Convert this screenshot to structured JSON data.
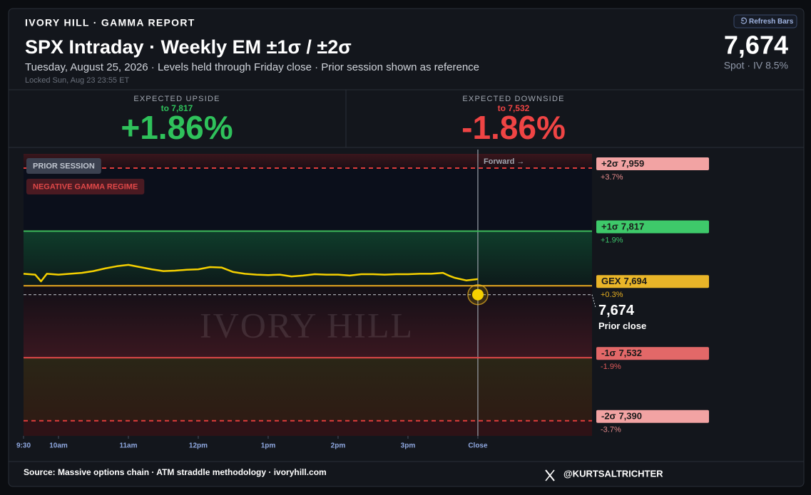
{
  "header": {
    "brand": "IVORY HILL · GAMMA REPORT",
    "title": "SPX Intraday · Weekly EM ±1σ / ±2σ",
    "subtitle": "Tuesday, August 25, 2026 · Levels held through Friday close · Prior session shown as reference",
    "locked": "Locked Sun, Aug 23 23:55 ET",
    "refresh": "Refresh Bars",
    "spot": "7,674",
    "spot_note": "Spot · IV 8.5%"
  },
  "cards": [
    {
      "label": "EXPECTED UPSIDE",
      "target": "to 7,817",
      "change": "+1.86%",
      "color": "#2fc25b"
    },
    {
      "label": "EXPECTED DOWNSIDE",
      "target": "to 7,532",
      "change": "-1.86%",
      "color": "#ef4444"
    }
  ],
  "chart_data": {
    "type": "line",
    "badges": [
      "PRIOR SESSION",
      "NEGATIVE GAMMA REGIME"
    ],
    "forward_label": "Forward →",
    "watermark": "IVORY HILL",
    "x": [
      0,
      10,
      15,
      20,
      30,
      40,
      50,
      60,
      70,
      80,
      90,
      100,
      110,
      120,
      130,
      140,
      150,
      160,
      170,
      180,
      190,
      200,
      210,
      220,
      230,
      240,
      250,
      260,
      270,
      280,
      290,
      300,
      310,
      320,
      330,
      340,
      350,
      360,
      365,
      370,
      380,
      390
    ],
    "values": [
      7721,
      7719,
      7704,
      7721,
      7719,
      7721,
      7723,
      7727,
      7733,
      7738,
      7741,
      7736,
      7731,
      7727,
      7728,
      7730,
      7731,
      7736,
      7735,
      7725,
      7721,
      7719,
      7718,
      7719,
      7715,
      7717,
      7720,
      7719,
      7719,
      7717,
      7720,
      7720,
      7719,
      7720,
      7720,
      7721,
      7721,
      7723,
      7717,
      7712,
      7706,
      7709
    ],
    "color": "#f5d000",
    "xlim": [
      0,
      488
    ],
    "xticks": [
      {
        "value": 0,
        "label": "9:30"
      },
      {
        "value": 30,
        "label": "10am"
      },
      {
        "value": 90,
        "label": "11am"
      },
      {
        "value": 150,
        "label": "12pm"
      },
      {
        "value": 210,
        "label": "1pm"
      },
      {
        "value": 270,
        "label": "2pm"
      },
      {
        "value": 330,
        "label": "3pm"
      },
      {
        "value": 390,
        "label": "Close"
      }
    ],
    "ylim": [
      7356,
      7991
    ],
    "levels": [
      {
        "name": "+2σ",
        "value": 7959,
        "value_label": "7,959",
        "change": "+3.7%",
        "color": "#e03c3c",
        "label_color": "#f2a3a3",
        "text_color": "#e58a8a",
        "style": "dashed"
      },
      {
        "name": "+1σ",
        "value": 7817,
        "value_label": "7,817",
        "change": "+1.9%",
        "color": "#3cb95a",
        "label_color": "#3ec96a",
        "text_color": "#3cc46a",
        "style": "solid"
      },
      {
        "name": "GEX",
        "value": 7694,
        "value_label": "7,694",
        "change": "+0.3%",
        "color": "#e8a820",
        "label_color": "#e9b528",
        "text_color": "#e8b020",
        "style": "solid"
      },
      {
        "name": "-1σ",
        "value": 7532,
        "value_label": "7,532",
        "change": "-1.9%",
        "color": "#e04848",
        "label_color": "#e26868",
        "text_color": "#e05a5a",
        "style": "solid"
      },
      {
        "name": "-2σ",
        "value": 7390,
        "value_label": "7,390",
        "change": "-3.7%",
        "color": "#e03c3c",
        "label_color": "#f2a3a3",
        "text_color": "#e58a8a",
        "style": "dashed"
      }
    ],
    "prior_close": {
      "value": 7674,
      "value_label": "7,674",
      "name": "Prior close",
      "color": "#c8ccd4"
    }
  },
  "footer": {
    "source": "Source: Massive options chain · ATM straddle methodology · ivoryhill.com",
    "handle": "@KURTSALTRICHTER"
  }
}
